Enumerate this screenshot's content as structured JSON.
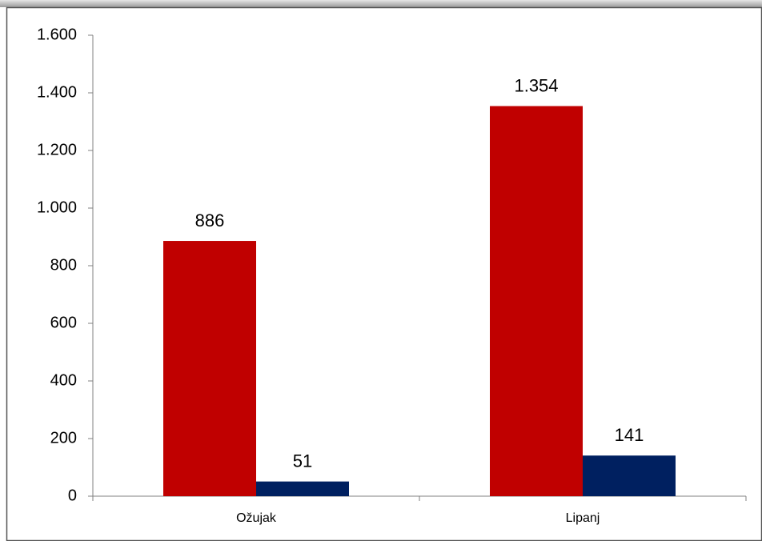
{
  "chart_data": {
    "type": "bar",
    "categories": [
      "Ožujak",
      "Lipanj"
    ],
    "series": [
      {
        "color": "#c00000",
        "values": [
          886,
          1354
        ],
        "value_labels": [
          "886",
          "1.354"
        ]
      },
      {
        "color": "#002060",
        "values": [
          51,
          141
        ]
      }
    ],
    "ylim": [
      0,
      1600
    ],
    "yticks": [
      0,
      200,
      400,
      600,
      800,
      {
        "value": 1000,
        "label": "1.000"
      },
      {
        "value": 1200,
        "label": "1.200"
      },
      {
        "value": 1400,
        "label": "1.400"
      },
      {
        "value": 1600,
        "label": "1.600"
      }
    ],
    "grid": false
  }
}
